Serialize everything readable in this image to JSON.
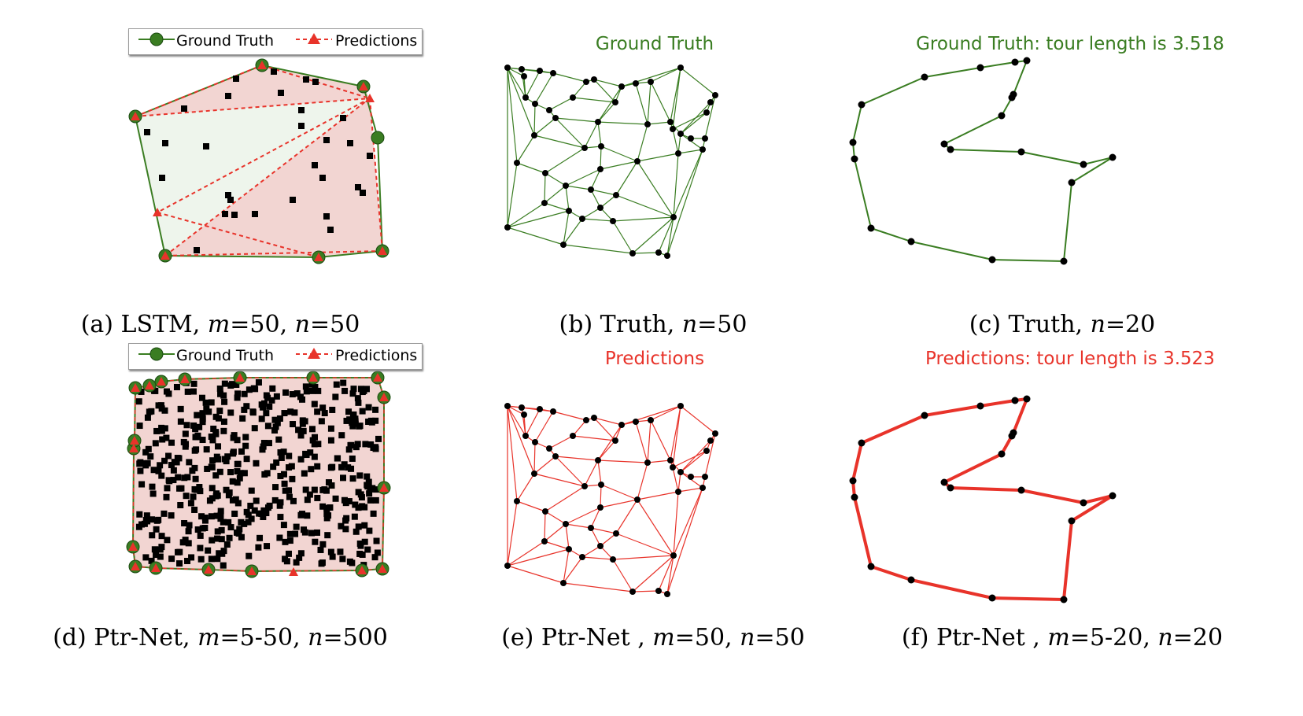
{
  "colors": {
    "truth": "#3a7d22",
    "pred": "#e8332a",
    "hull_fill_pred": "#f2d5d2",
    "hull_fill_truth": "#eef5ec",
    "point": "#000000"
  },
  "legend": {
    "truth_label": "Ground Truth",
    "pred_label": "Predictions"
  },
  "panels": {
    "a": {
      "caption_prefix": "(a) LSTM, ",
      "caption_vars": [
        "m",
        "=50, ",
        "n",
        "=50"
      ]
    },
    "b": {
      "title": "Ground Truth",
      "caption_prefix": "(b) Truth, ",
      "caption_vars": [
        "n",
        "=50"
      ]
    },
    "c": {
      "title": "Ground Truth: tour length is 3.518",
      "caption_prefix": "(c) Truth, ",
      "caption_vars": [
        "n",
        "=20"
      ]
    },
    "d": {
      "caption_prefix": "(d) Ptr-Net, ",
      "caption_vars": [
        "m",
        "=5-50, ",
        "n",
        "=500"
      ]
    },
    "e": {
      "title": "Predictions",
      "caption_prefix": "(e) Ptr-Net , ",
      "caption_vars": [
        "m",
        "=50, ",
        "n",
        "=50"
      ]
    },
    "f": {
      "title": "Predictions: tour length is 3.523",
      "caption_prefix": "(f) Ptr-Net , ",
      "caption_vars": [
        "m",
        "=5-20, ",
        "n",
        "=20"
      ]
    }
  }
}
